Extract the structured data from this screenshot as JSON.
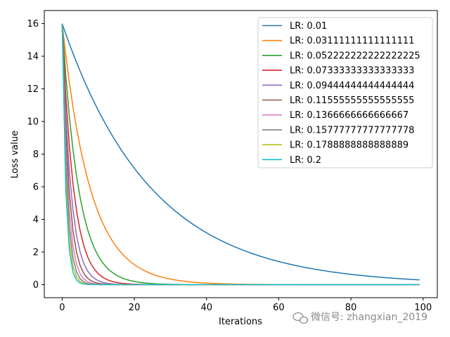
{
  "chart_data": {
    "type": "line",
    "title": "",
    "xlabel": "Iterations",
    "ylabel": "Loss value",
    "xlim": [
      -4.95,
      103.95
    ],
    "ylim": [
      -0.8,
      16.8
    ],
    "xticks": [
      0,
      20,
      40,
      60,
      80,
      100
    ],
    "yticks": [
      0,
      2,
      4,
      6,
      8,
      10,
      12,
      14,
      16
    ],
    "grid": false,
    "legend_position": "top-right",
    "initial_value": 16,
    "iterations": 100,
    "curve_model": "exponential decay: y = 16 * (1 - 2*lr)^(2*i)",
    "series": [
      {
        "name": "LR: 0.01",
        "lr": 0.01,
        "color": "#1f77b4"
      },
      {
        "name": "LR: 0.03111111111111111",
        "lr": 0.03111111111111111,
        "color": "#ff7f0e"
      },
      {
        "name": "LR: 0.052222222222222225",
        "lr": 0.052222222222222225,
        "color": "#2ca02c"
      },
      {
        "name": "LR: 0.07333333333333333",
        "lr": 0.07333333333333333,
        "color": "#d62728"
      },
      {
        "name": "LR: 0.09444444444444444",
        "lr": 0.09444444444444444,
        "color": "#9467bd"
      },
      {
        "name": "LR: 0.11555555555555555",
        "lr": 0.11555555555555555,
        "color": "#8c564b"
      },
      {
        "name": "LR: 0.1366666666666667",
        "lr": 0.1366666666666667,
        "color": "#e377c2"
      },
      {
        "name": "LR: 0.15777777777777778",
        "lr": 0.15777777777777777,
        "color": "#7f7f7f"
      },
      {
        "name": "LR: 0.1788888888888889",
        "lr": 0.1788888888888889,
        "color": "#bcbd22"
      },
      {
        "name": "LR: 0.2",
        "lr": 0.2,
        "color": "#17becf"
      }
    ]
  },
  "watermark": {
    "text": "微信号: zhangxian_2019",
    "icon": "wechat-icon"
  }
}
